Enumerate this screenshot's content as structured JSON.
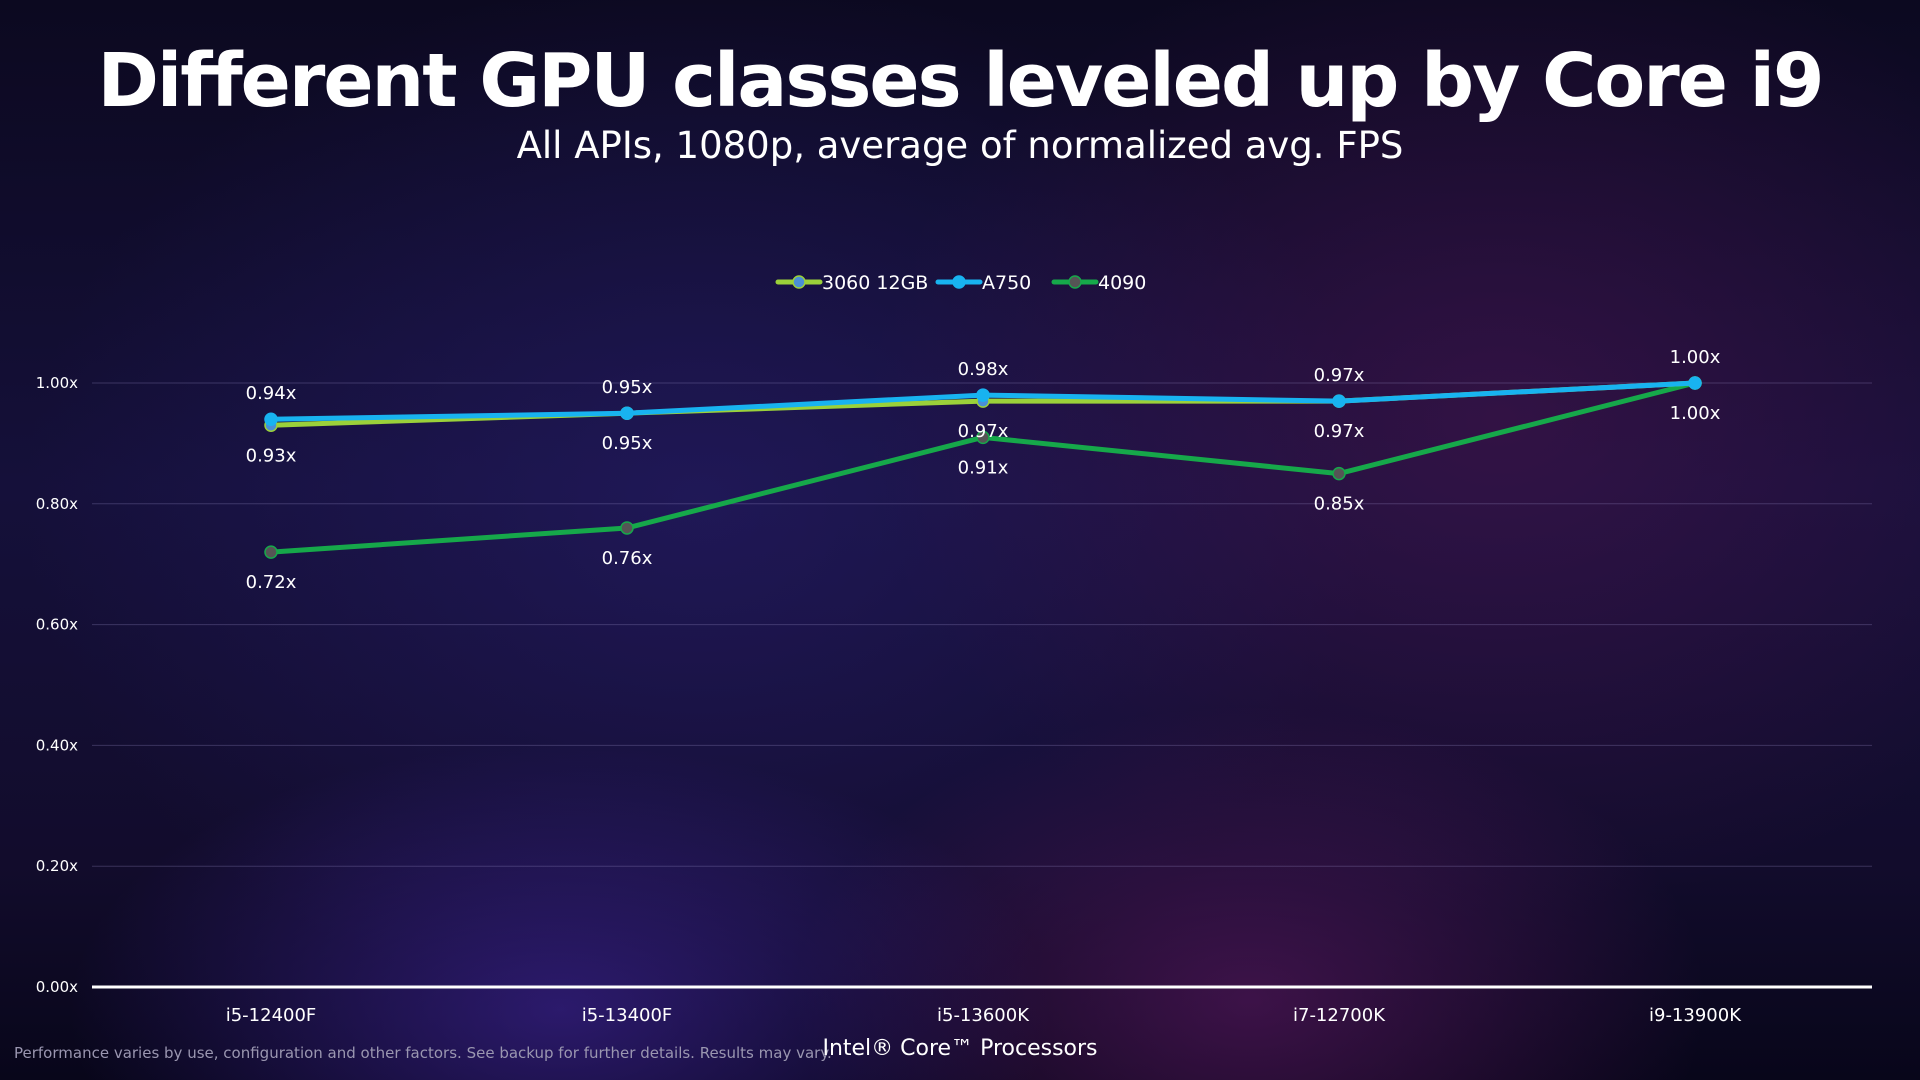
{
  "title": "Different GPU classes leveled up by Core i9",
  "subtitle": "All APIs, 1080p, average of normalized avg. FPS",
  "footer": {
    "disclaimer": "Performance varies by use, configuration and other factors. See backup for further details. Results may vary.",
    "xlabel": "Intel® Core™ Processors"
  },
  "chart_data": {
    "type": "line",
    "title": "Different GPU classes leveled up by Core i9",
    "subtitle": "All APIs, 1080p, average of normalized avg. FPS",
    "xlabel": "Intel® Core™ Processors",
    "ylabel": "",
    "categories": [
      "i5-12400F",
      "i5-13400F",
      "i5-13600K",
      "i7-12700K",
      "i9-13900K"
    ],
    "ylim": [
      0,
      1.0
    ],
    "yticks": [
      "0.00x",
      "0.20x",
      "0.40x",
      "0.60x",
      "0.80x",
      "1.00x"
    ],
    "ytick_values": [
      0,
      0.2,
      0.4,
      0.6,
      0.8,
      1.0
    ],
    "grid": true,
    "legend_position": "top-center",
    "series": [
      {
        "name": "3060 12GB",
        "color": "#9bd13a",
        "marker_color": "#4a8fd6",
        "values": [
          0.93,
          0.95,
          0.97,
          0.97,
          1.0
        ],
        "labels": [
          "0.93x",
          "0.95x",
          "0.97x",
          "0.97x",
          ""
        ],
        "label_position": "below"
      },
      {
        "name": "A750",
        "color": "#18b3f0",
        "marker_color": "#18b3f0",
        "values": [
          0.94,
          0.95,
          0.98,
          0.97,
          1.0
        ],
        "labels": [
          "0.94x",
          "0.95x",
          "0.98x",
          "0.97x",
          "1.00x"
        ],
        "label_position": "above"
      },
      {
        "name": "4090",
        "color": "#16a84a",
        "marker_color": "#555555",
        "values": [
          0.72,
          0.76,
          0.91,
          0.85,
          1.0
        ],
        "labels": [
          "0.72x",
          "0.76x",
          "0.91x",
          "0.85x",
          "1.00x"
        ],
        "label_position": "below"
      }
    ]
  }
}
